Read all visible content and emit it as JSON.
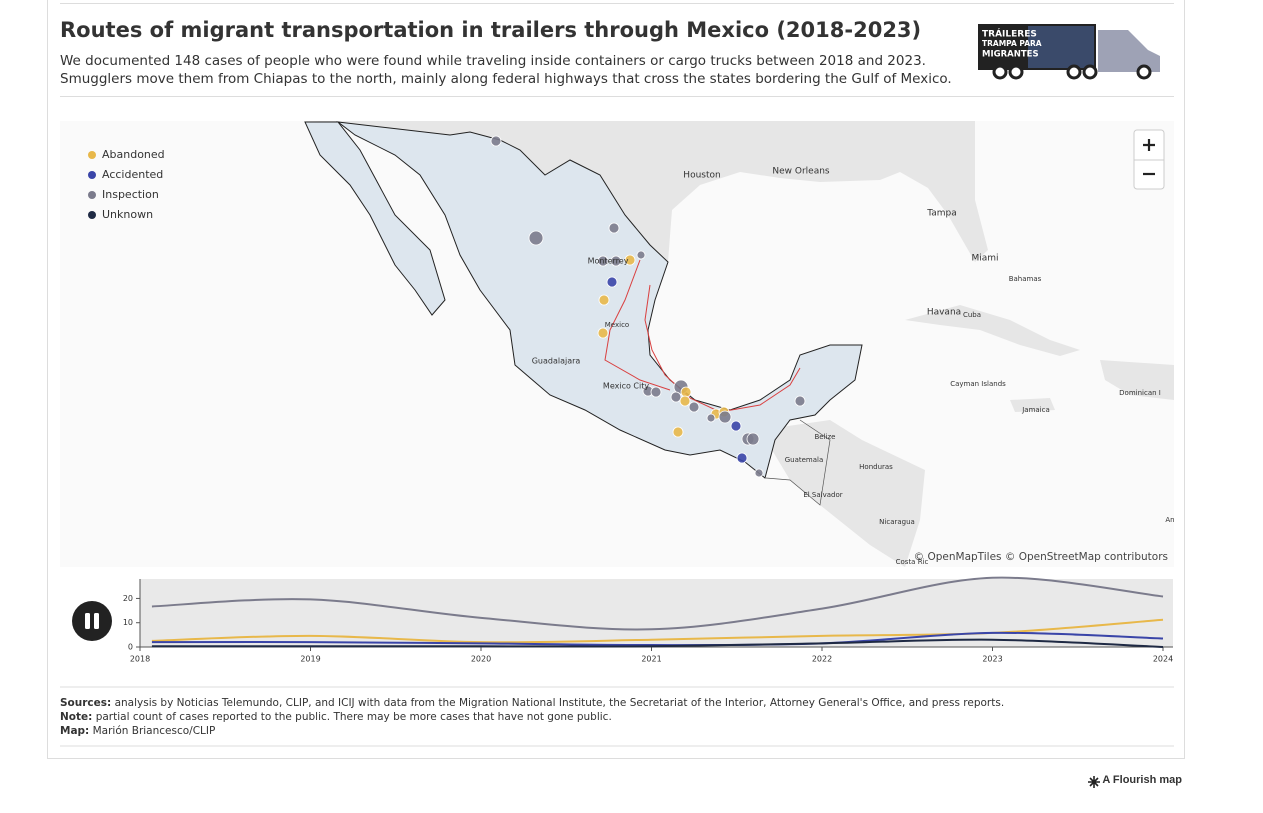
{
  "header": {
    "title": "Routes of migrant transportation in trailers through Mexico (2018-2023)",
    "description": "We documented 148 cases of people who were found while traveling inside containers or cargo trucks between 2018 and 2023. Smugglers move them from Chiapas to the north, mainly along federal highways that cross the states bordering the Gulf of Mexico.",
    "image_text": [
      "TRÁILERES",
      "TRAMPA PARA",
      "MIGRANTES"
    ]
  },
  "legend": [
    {
      "name": "Abandoned",
      "color": "#e8b84a"
    },
    {
      "name": "Accidented",
      "color": "#3a45a8"
    },
    {
      "name": "Inspection",
      "color": "#7b7b8c"
    },
    {
      "name": "Unknown",
      "color": "#1f2a44"
    }
  ],
  "map_labels": [
    "Houston",
    "New Orleans",
    "Tampa",
    "Miami",
    "Bahamas",
    "Havana",
    "Cuba",
    "Cayman Islands",
    "Jamaica",
    "Dominican I",
    "Belize",
    "Guatemala",
    "Honduras",
    "El Salvador",
    "Nicaragua",
    "Costa Ric",
    "Monterrey",
    "Mexico",
    "Guadalajara",
    "Mexico City",
    "An"
  ],
  "attribution": "© OpenMapTiles © OpenStreetMap contributors",
  "chart_data": {
    "type": "line",
    "x": [
      2018.07,
      2019,
      2020,
      2021,
      2022,
      2023,
      2024
    ],
    "xlim": [
      2018,
      2024
    ],
    "xticks": [
      2018,
      2019,
      2020,
      2021,
      2022,
      2023,
      2024
    ],
    "ylim": [
      0,
      28
    ],
    "yticks": [
      0,
      10,
      20
    ],
    "series": [
      {
        "name": "Inspection",
        "color": "#7b7b8c",
        "values": [
          16.7,
          19.6,
          12,
          7.3,
          15.8,
          28.5,
          20.8
        ]
      },
      {
        "name": "Abandoned",
        "color": "#e8b84a",
        "values": [
          2.5,
          4.6,
          2,
          3,
          4.6,
          5.8,
          11.2
        ]
      },
      {
        "name": "Accidented",
        "color": "#3a45a8",
        "values": [
          2,
          2,
          1.5,
          0.8,
          1.5,
          5.8,
          3.5
        ]
      },
      {
        "name": "Unknown",
        "color": "#1f2a44",
        "values": [
          0.3,
          0.3,
          0.3,
          0.3,
          1.5,
          3,
          0
        ]
      }
    ]
  },
  "footer": {
    "sources_label": "Sources:",
    "sources": "analysis by Noticias Telemundo, CLIP, and ICIJ with data from the Migration National Institute, the Secretariat of the Interior, Attorney General's Office, and press reports.",
    "note_label": "Note:",
    "note": "partial count of cases reported to the public. There may be more cases that have not gone public.",
    "map_label": "Map:",
    "map": "Marión Briancesco/CLIP"
  },
  "branding": "A Flourish map"
}
